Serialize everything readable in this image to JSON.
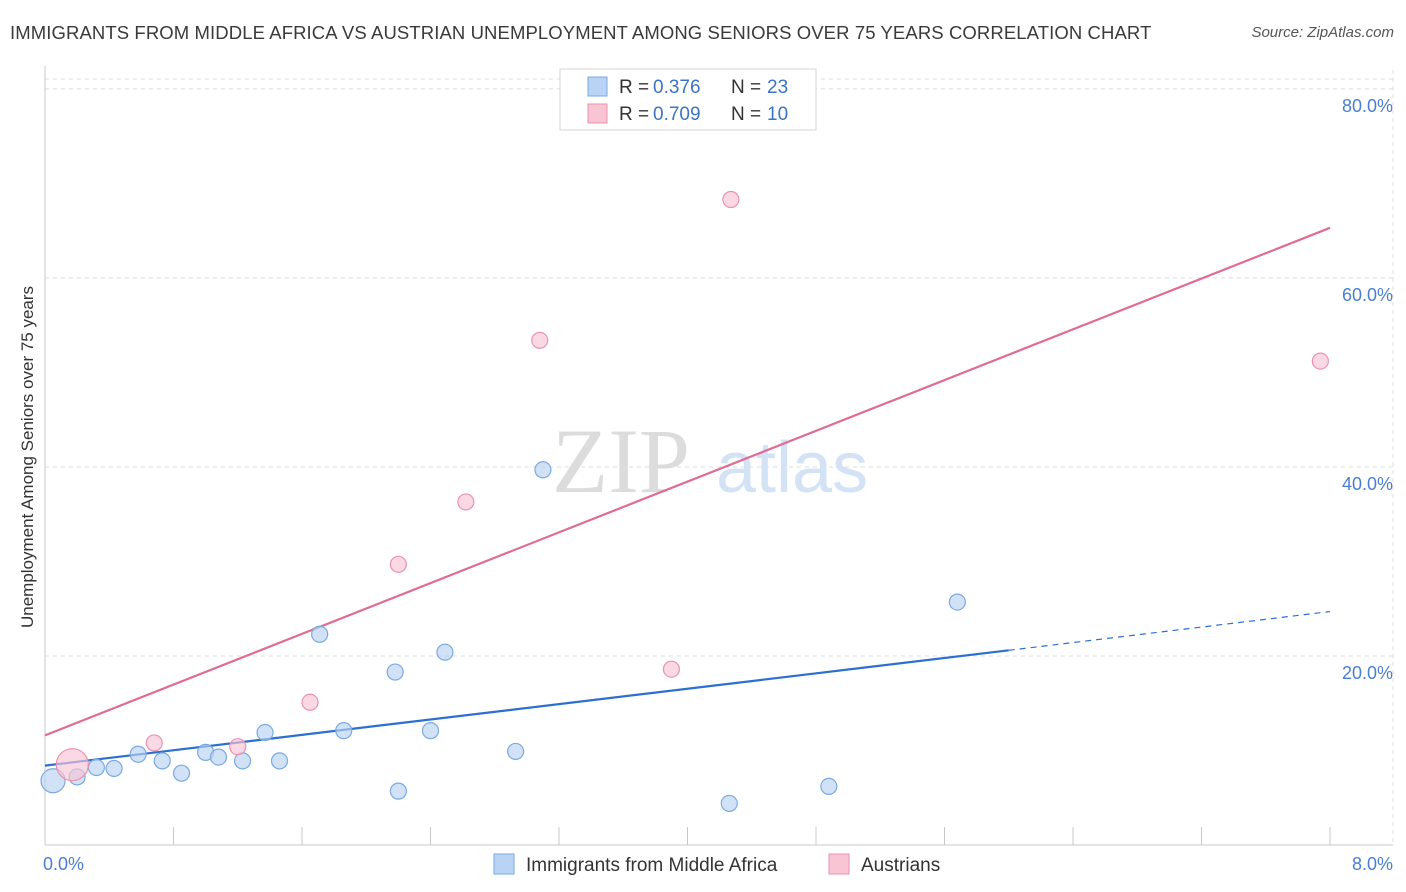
{
  "title": "IMMIGRANTS FROM MIDDLE AFRICA VS AUSTRIAN UNEMPLOYMENT AMONG SENIORS OVER 75 YEARS CORRELATION CHART",
  "source": "Source: ZipAtlas.com",
  "watermark": {
    "zip": "ZIP",
    "atlas": "atlas"
  },
  "colors": {
    "blue_fill": "#b8d3f3",
    "blue_stroke": "#7aaae0",
    "blue_line": "#2b6fd0",
    "pink_fill": "#f8c5d5",
    "pink_stroke": "#ec92ad",
    "pink_line": "#e06c95",
    "grid": "#dcdcdc",
    "tick_text": "#4a7fd0"
  },
  "legend": {
    "rows": [
      {
        "r_label": "R =",
        "r_value": "0.376",
        "n_label": "N =",
        "n_value": "23",
        "series": "blue"
      },
      {
        "r_label": "R =",
        "r_value": "0.709",
        "n_label": "N =",
        "n_value": "10",
        "series": "pink"
      }
    ]
  },
  "chart_data": {
    "type": "scatter",
    "title": "IMMIGRANTS FROM MIDDLE AFRICA VS AUSTRIAN UNEMPLOYMENT AMONG SENIORS OVER 75 YEARS CORRELATION CHART",
    "xlabel": "",
    "ylabel": "Unemployment Among Seniors over 75 years",
    "xlim": [
      0,
      8
    ],
    "ylim": [
      0,
      82
    ],
    "x_tick_labels": [
      {
        "value": 0,
        "label": "0.0%"
      },
      {
        "value": 8,
        "label": "8.0%"
      }
    ],
    "x_minor_ticks": [
      0.8,
      1.6,
      2.4,
      3.2,
      4.0,
      4.8,
      5.6,
      6.4,
      7.2,
      8.0
    ],
    "y_ticks": [
      {
        "value": 20,
        "label": "20.0%"
      },
      {
        "value": 40,
        "label": "40.0%"
      },
      {
        "value": 60,
        "label": "60.0%"
      },
      {
        "value": 80,
        "label": "80.0%"
      }
    ],
    "series": [
      {
        "name": "Immigrants from Middle Africa",
        "color": "blue",
        "points": [
          {
            "x": 0.05,
            "y": 6.8,
            "size": 12
          },
          {
            "x": 0.2,
            "y": 7.2,
            "size": 8
          },
          {
            "x": 0.32,
            "y": 8.2,
            "size": 8
          },
          {
            "x": 0.43,
            "y": 8.1,
            "size": 8
          },
          {
            "x": 0.58,
            "y": 9.6,
            "size": 8
          },
          {
            "x": 0.73,
            "y": 8.9,
            "size": 8
          },
          {
            "x": 0.85,
            "y": 7.6,
            "size": 8
          },
          {
            "x": 1.0,
            "y": 9.8,
            "size": 8
          },
          {
            "x": 1.08,
            "y": 9.3,
            "size": 8
          },
          {
            "x": 1.23,
            "y": 8.9,
            "size": 8
          },
          {
            "x": 1.37,
            "y": 11.9,
            "size": 8
          },
          {
            "x": 1.46,
            "y": 8.9,
            "size": 8
          },
          {
            "x": 1.71,
            "y": 22.3,
            "size": 8
          },
          {
            "x": 1.86,
            "y": 12.1,
            "size": 8
          },
          {
            "x": 2.18,
            "y": 18.3,
            "size": 8
          },
          {
            "x": 2.2,
            "y": 5.7,
            "size": 8
          },
          {
            "x": 2.4,
            "y": 12.1,
            "size": 8
          },
          {
            "x": 2.49,
            "y": 20.4,
            "size": 8
          },
          {
            "x": 2.93,
            "y": 9.9,
            "size": 8
          },
          {
            "x": 3.1,
            "y": 39.7,
            "size": 8
          },
          {
            "x": 4.26,
            "y": 4.4,
            "size": 8
          },
          {
            "x": 4.88,
            "y": 6.2,
            "size": 8
          },
          {
            "x": 5.68,
            "y": 25.7,
            "size": 8
          }
        ]
      },
      {
        "name": "Austrians",
        "color": "pink",
        "points": [
          {
            "x": 0.17,
            "y": 8.5,
            "size": 16
          },
          {
            "x": 0.68,
            "y": 10.8,
            "size": 8
          },
          {
            "x": 1.2,
            "y": 10.4,
            "size": 8
          },
          {
            "x": 1.65,
            "y": 15.1,
            "size": 8
          },
          {
            "x": 2.2,
            "y": 29.7,
            "size": 8
          },
          {
            "x": 2.62,
            "y": 36.3,
            "size": 8
          },
          {
            "x": 3.08,
            "y": 53.4,
            "size": 8
          },
          {
            "x": 3.9,
            "y": 18.6,
            "size": 8
          },
          {
            "x": 4.27,
            "y": 68.3,
            "size": 8
          },
          {
            "x": 7.94,
            "y": 51.2,
            "size": 8
          }
        ]
      }
    ],
    "trendlines": [
      {
        "series": "Immigrants from Middle Africa",
        "x_start": 0,
        "y_start": 8.4,
        "x_solid_end": 6.0,
        "y_solid_end": 20.6,
        "x_end": 8.0,
        "y_end": 24.7
      },
      {
        "series": "Austrians",
        "x_start": 0,
        "y_start": 11.6,
        "x_end": 8.0,
        "y_end": 65.3
      }
    ]
  },
  "bottom_legend": [
    {
      "label": "Immigrants from Middle Africa",
      "color": "blue"
    },
    {
      "label": "Austrians",
      "color": "pink"
    }
  ]
}
